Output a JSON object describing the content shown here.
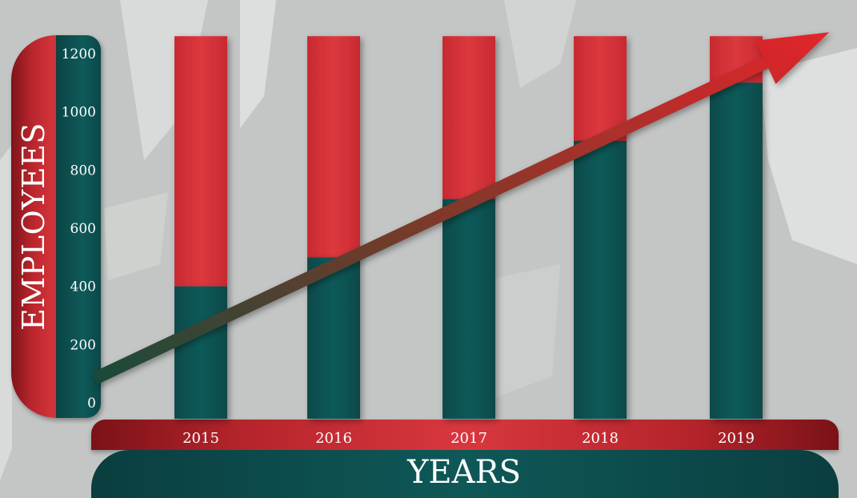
{
  "chart_data": {
    "type": "bar",
    "title": "",
    "xlabel": "YEARS",
    "ylabel": "EMPLOYEES",
    "categories": [
      "2015",
      "2016",
      "2017",
      "2018",
      "2019"
    ],
    "series": [
      {
        "values": [
          400,
          500,
          700,
          900,
          1100
        ]
      },
      {
        "values": [
          1260,
          1260,
          1260,
          1260,
          1260
        ]
      }
    ],
    "yticks": [
      "0",
      "200",
      "400",
      "600",
      "800",
      "1000",
      "1200"
    ],
    "ylim": [
      0,
      1260
    ],
    "grid": true,
    "trend_arrow": "rising",
    "colors": {
      "teal": "#0d5454",
      "red": "#d8343b",
      "arrow_start": "#174a3a",
      "arrow_end": "#e2252a"
    }
  }
}
